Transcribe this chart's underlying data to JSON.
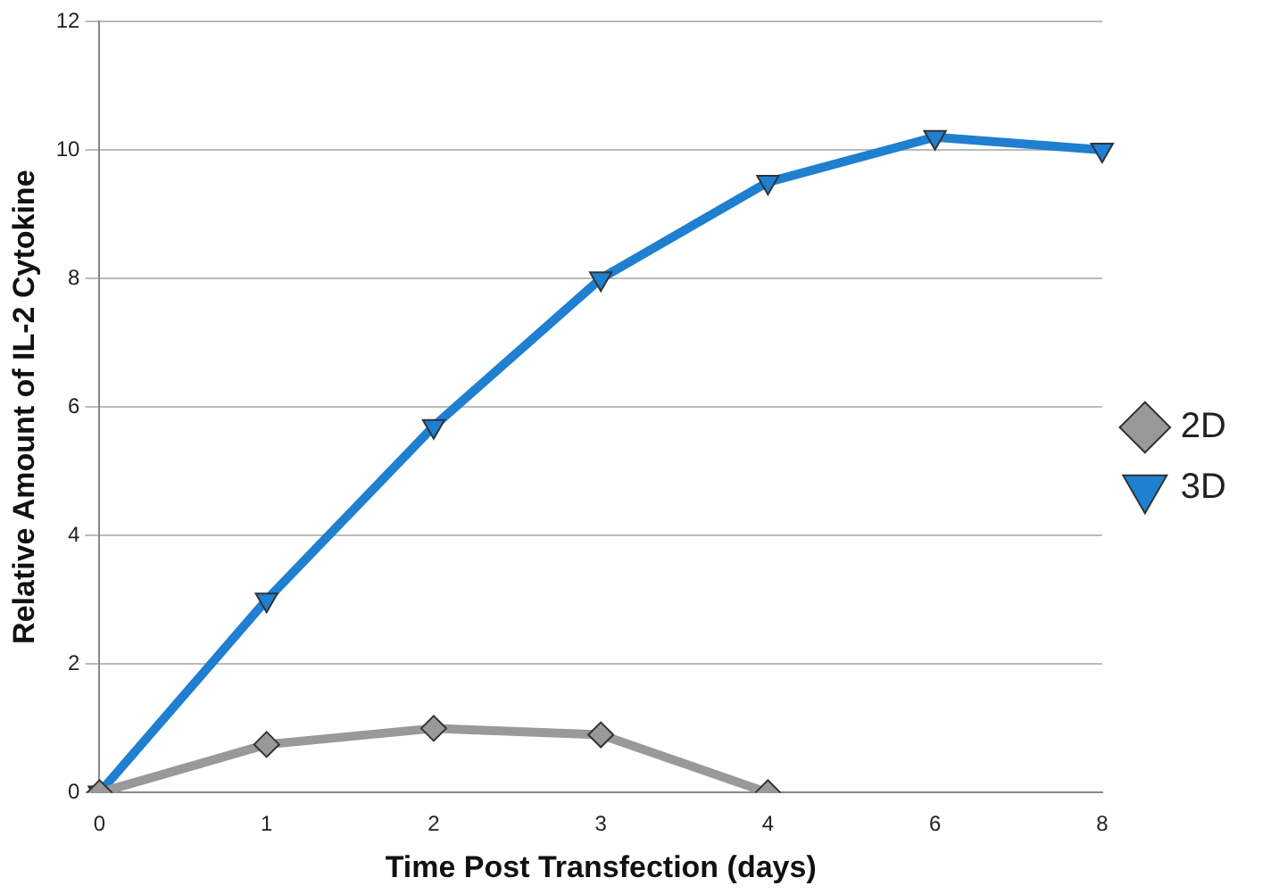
{
  "chart_data": {
    "type": "line",
    "xlabel": "Time Post Transfection (days)",
    "ylabel": "Relative Amount of IL-2 Cytokine",
    "categories": [
      "0",
      "1",
      "2",
      "3",
      "4",
      "6",
      "8"
    ],
    "series": [
      {
        "name": "2D",
        "color": "#999999",
        "marker": "diamond",
        "values": [
          0,
          0.75,
          1.0,
          0.9,
          0,
          null,
          null
        ]
      },
      {
        "name": "3D",
        "color": "#1f7fd0",
        "marker": "triangle-down",
        "values": [
          0,
          3.0,
          5.7,
          8.0,
          9.5,
          10.2,
          10.0
        ]
      }
    ],
    "ylim": [
      0,
      12
    ],
    "yticks": [
      0,
      2,
      4,
      6,
      8,
      10,
      12
    ],
    "grid": "y",
    "legend": "right"
  }
}
